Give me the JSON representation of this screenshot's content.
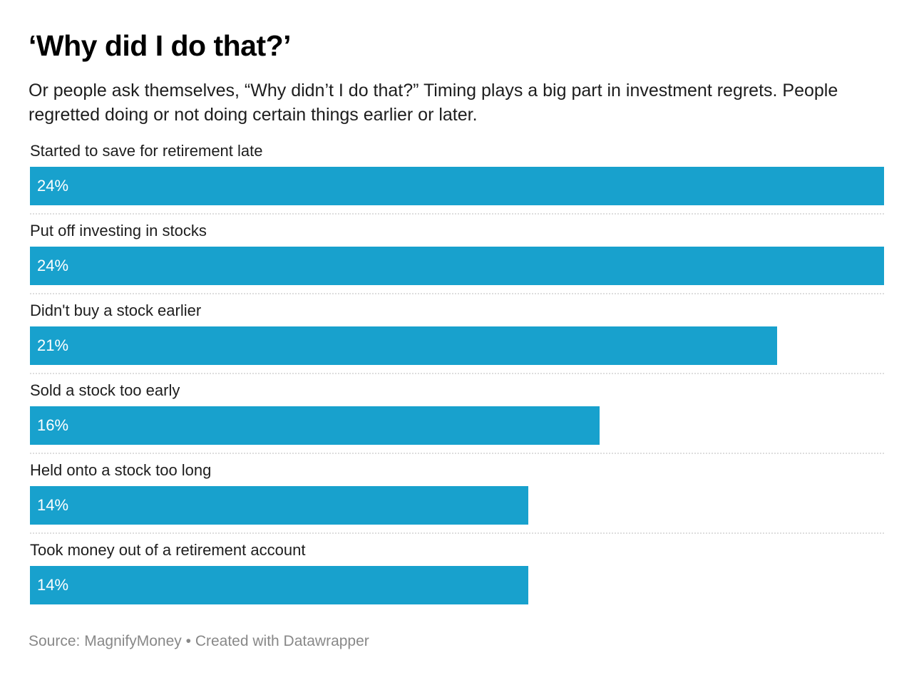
{
  "title": "‘Why did I do that?’",
  "subtitle": "Or people ask themselves, “Why didn’t I do that?” Timing plays a big part in investment regrets. People regretted doing or not doing certain things earlier or later.",
  "footer": {
    "source_label": "Source:",
    "source_name": "MagnifyMoney",
    "separator": "•",
    "credit": "Created with Datawrapper"
  },
  "colors": {
    "bar": "#18a1cd",
    "value_text": "#ffffff",
    "footer_text": "#888888"
  },
  "chart_data": {
    "type": "bar",
    "orientation": "horizontal",
    "categories": [
      "Started to save for retirement late",
      "Put off investing in stocks",
      "Didn't buy a stock earlier",
      "Sold a stock too early",
      "Held onto a stock too long",
      "Took money out of a retirement account"
    ],
    "values": [
      24,
      24,
      21,
      16,
      14,
      14
    ],
    "value_labels": [
      "24%",
      "24%",
      "21%",
      "16%",
      "14%",
      "14%"
    ],
    "xlim": [
      0,
      24
    ],
    "grid": false,
    "legend": "none"
  }
}
